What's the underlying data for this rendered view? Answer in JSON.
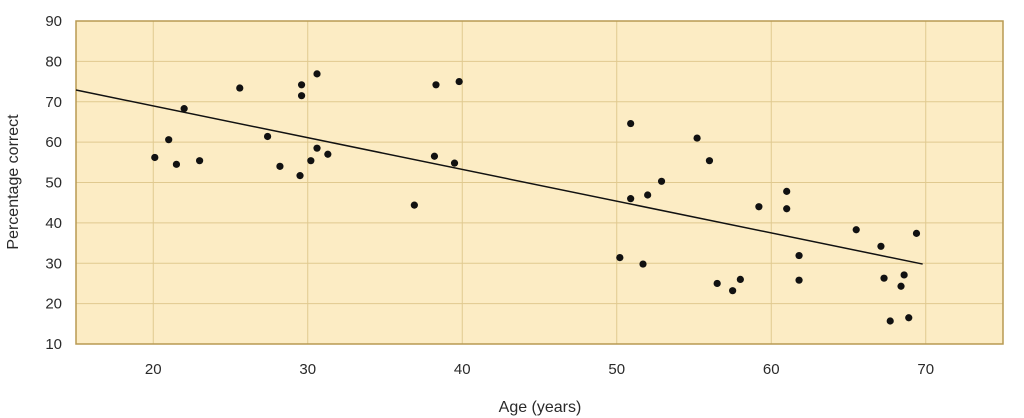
{
  "chart_data": {
    "type": "scatter",
    "title": "",
    "xlabel": "Age (years)",
    "ylabel": "Percentage correct",
    "xlim": [
      15,
      75
    ],
    "ylim": [
      10,
      90
    ],
    "xticks": [
      20,
      30,
      40,
      50,
      60,
      70
    ],
    "yticks": [
      10,
      20,
      30,
      40,
      50,
      60,
      70,
      80,
      90
    ],
    "grid": true,
    "colors": {
      "plot_background": "#fcecc4",
      "grid": "#e0c98f",
      "frame": "#b89a52",
      "points": "#111111",
      "line": "#111111"
    },
    "points": [
      {
        "x": 20.1,
        "y": 56.2
      },
      {
        "x": 21.0,
        "y": 60.6
      },
      {
        "x": 21.5,
        "y": 54.5
      },
      {
        "x": 22.0,
        "y": 68.3
      },
      {
        "x": 23.0,
        "y": 55.4
      },
      {
        "x": 25.6,
        "y": 73.4
      },
      {
        "x": 27.4,
        "y": 61.4
      },
      {
        "x": 28.2,
        "y": 54.0
      },
      {
        "x": 29.5,
        "y": 51.7
      },
      {
        "x": 29.6,
        "y": 74.2
      },
      {
        "x": 29.6,
        "y": 71.5
      },
      {
        "x": 30.2,
        "y": 55.4
      },
      {
        "x": 30.6,
        "y": 58.5
      },
      {
        "x": 30.6,
        "y": 76.9
      },
      {
        "x": 31.3,
        "y": 57.0
      },
      {
        "x": 36.9,
        "y": 44.4
      },
      {
        "x": 38.2,
        "y": 56.5
      },
      {
        "x": 38.3,
        "y": 74.2
      },
      {
        "x": 39.5,
        "y": 54.8
      },
      {
        "x": 39.8,
        "y": 75.0
      },
      {
        "x": 50.2,
        "y": 31.4
      },
      {
        "x": 50.9,
        "y": 46.0
      },
      {
        "x": 50.9,
        "y": 64.6
      },
      {
        "x": 51.7,
        "y": 29.8
      },
      {
        "x": 52.0,
        "y": 46.9
      },
      {
        "x": 52.9,
        "y": 50.3
      },
      {
        "x": 55.2,
        "y": 61.0
      },
      {
        "x": 56.0,
        "y": 55.4
      },
      {
        "x": 56.5,
        "y": 25.0
      },
      {
        "x": 57.5,
        "y": 23.2
      },
      {
        "x": 58.0,
        "y": 26.0
      },
      {
        "x": 59.2,
        "y": 44.0
      },
      {
        "x": 61.0,
        "y": 47.8
      },
      {
        "x": 61.0,
        "y": 43.5
      },
      {
        "x": 61.8,
        "y": 31.9
      },
      {
        "x": 61.8,
        "y": 25.8
      },
      {
        "x": 65.5,
        "y": 38.3
      },
      {
        "x": 67.1,
        "y": 34.2
      },
      {
        "x": 67.3,
        "y": 26.3
      },
      {
        "x": 67.7,
        "y": 15.7
      },
      {
        "x": 68.4,
        "y": 24.3
      },
      {
        "x": 68.6,
        "y": 27.1
      },
      {
        "x": 68.9,
        "y": 16.5
      },
      {
        "x": 69.4,
        "y": 37.4
      }
    ],
    "trend_line": {
      "x": [
        15.0,
        69.8
      ],
      "y": [
        72.9,
        29.8
      ]
    }
  }
}
